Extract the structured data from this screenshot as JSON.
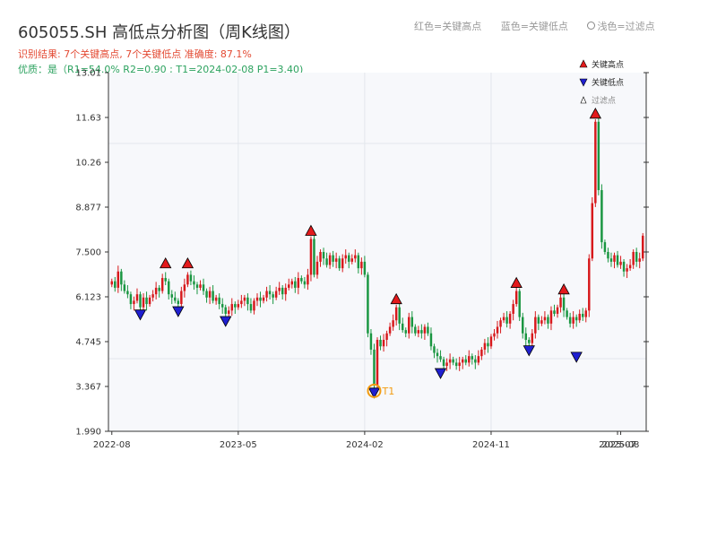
{
  "header": {
    "title": "605055.SH 高低点分析图（周K线图）",
    "result_line": "识别结果: 7个关键高点, 7个关键低点  准确度: 87.1%",
    "quality_line": "优质：是（R1=54.0%  R2=0.90 ; T1=2024-02-08 P1=3.40)",
    "legend_red": "红色=关键高点",
    "legend_blue": "蓝色=关键低点",
    "legend_gray": "浅色=过滤点"
  },
  "colors": {
    "up": "#d7191c",
    "down": "#1a9641",
    "high_marker": "#e31a1c",
    "low_marker": "#1f1fd0",
    "t1": "#f39c12",
    "plot_bg": "#f7f8fb",
    "grid": "#e3e6ec"
  },
  "chart_data": {
    "type": "candlestick",
    "title": "605055.SH 高低点分析图（周K线图）",
    "ylim": [
      1.99,
      13.01
    ],
    "yticks": [
      "1.990",
      "3.367",
      "4.745",
      "6.123",
      "7.500",
      "8.877",
      "10.26",
      "11.63",
      "13.01"
    ],
    "xticks": [
      {
        "label": "2022-08",
        "i": 0
      },
      {
        "label": "2023-05",
        "i": 40
      },
      {
        "label": "2024-02",
        "i": 80
      },
      {
        "label": "2024-11",
        "i": 120
      },
      {
        "label": "2025-07",
        "i": 160
      },
      {
        "label": "2025-08",
        "i": 161
      }
    ],
    "legend": [
      {
        "label": "关键高点",
        "marker": "high"
      },
      {
        "label": "关键低点",
        "marker": "low"
      },
      {
        "label": "过滤点",
        "marker": "filtered"
      }
    ],
    "legend_position": "top-right",
    "closes": [
      6.6,
      6.4,
      6.9,
      6.5,
      6.3,
      6.2,
      5.9,
      6.0,
      6.2,
      5.8,
      6.1,
      5.9,
      6.1,
      6.2,
      6.4,
      6.3,
      6.7,
      6.6,
      6.2,
      6.1,
      6.0,
      5.9,
      6.3,
      6.5,
      6.8,
      6.6,
      6.5,
      6.4,
      6.5,
      6.3,
      6.1,
      6.3,
      6.0,
      6.1,
      5.9,
      5.8,
      5.6,
      5.7,
      5.9,
      5.8,
      5.9,
      6.0,
      6.1,
      5.9,
      5.7,
      6.0,
      6.1,
      6.0,
      6.1,
      6.3,
      6.2,
      6.1,
      6.3,
      6.4,
      6.2,
      6.4,
      6.5,
      6.6,
      6.4,
      6.7,
      6.6,
      6.5,
      6.8,
      7.9,
      6.8,
      7.2,
      7.5,
      7.3,
      7.1,
      7.4,
      7.2,
      7.3,
      7.0,
      7.3,
      7.4,
      7.2,
      7.3,
      7.4,
      7.0,
      7.2,
      6.8,
      5.0,
      4.5,
      3.4,
      4.8,
      4.6,
      4.8,
      5.0,
      5.2,
      5.4,
      5.8,
      5.3,
      5.1,
      5.0,
      5.5,
      5.2,
      5.0,
      5.1,
      5.0,
      5.2,
      5.0,
      4.6,
      4.4,
      4.3,
      4.2,
      4.0,
      4.1,
      4.2,
      4.1,
      4.0,
      4.1,
      4.2,
      4.1,
      4.3,
      4.2,
      4.1,
      4.3,
      4.5,
      4.7,
      4.6,
      4.9,
      5.0,
      5.2,
      5.4,
      5.5,
      5.3,
      5.6,
      5.9,
      6.3,
      5.5,
      5.0,
      4.8,
      4.7,
      5.0,
      5.5,
      5.3,
      5.4,
      5.5,
      5.3,
      5.7,
      5.6,
      5.8,
      6.1,
      5.7,
      5.5,
      5.3,
      5.5,
      5.4,
      5.6,
      5.5,
      5.7,
      7.3,
      9.0,
      11.5,
      9.4,
      7.8,
      7.5,
      7.3,
      7.2,
      7.4,
      7.1,
      7.2,
      6.9,
      7.0,
      7.1,
      7.5,
      7.2,
      7.3,
      8.0
    ],
    "key_highs": [
      {
        "i": 17,
        "price": 6.9
      },
      {
        "i": 24,
        "price": 6.9
      },
      {
        "i": 63,
        "price": 7.9
      },
      {
        "i": 90,
        "price": 5.8
      },
      {
        "i": 128,
        "price": 6.3
      },
      {
        "i": 143,
        "price": 6.1
      },
      {
        "i": 153,
        "price": 11.5
      }
    ],
    "key_lows": [
      {
        "i": 9,
        "price": 5.8
      },
      {
        "i": 21,
        "price": 5.9
      },
      {
        "i": 36,
        "price": 5.6
      },
      {
        "i": 83,
        "price": 3.4
      },
      {
        "i": 104,
        "price": 4.0
      },
      {
        "i": 132,
        "price": 4.7
      },
      {
        "i": 147,
        "price": 4.5
      }
    ],
    "t1": {
      "i": 83,
      "price": 3.4,
      "label": "T1"
    }
  }
}
